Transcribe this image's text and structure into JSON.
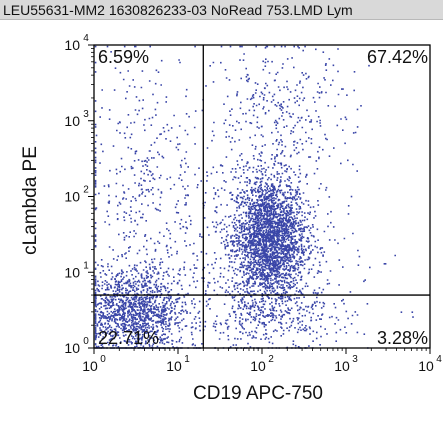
{
  "window": {
    "title": "LEU55631-MM2 1630826233-03 NoRead 753.LMD   Lym"
  },
  "colors": {
    "dots": "#3a46a8",
    "dots_dense": "#2437a9",
    "gate_lines": "#000000",
    "titlebar_bg": "#d9d9d9"
  },
  "chart_data": {
    "type": "scatter",
    "scale": "log",
    "xlabel": "CD19 APC-750",
    "ylabel": "cLambda PE",
    "xlim": [
      1,
      10000
    ],
    "ylim": [
      1,
      10000
    ],
    "x_ticks": [
      {
        "base": "10",
        "exp": "0"
      },
      {
        "base": "10",
        "exp": "1"
      },
      {
        "base": "10",
        "exp": "2"
      },
      {
        "base": "10",
        "exp": "3"
      },
      {
        "base": "10",
        "exp": "4"
      }
    ],
    "y_ticks": [
      {
        "base": "10",
        "exp": "0"
      },
      {
        "base": "10",
        "exp": "1"
      },
      {
        "base": "10",
        "exp": "2"
      },
      {
        "base": "10",
        "exp": "3"
      },
      {
        "base": "10",
        "exp": "4"
      }
    ],
    "gate": {
      "x": 20,
      "y": 5
    },
    "quadrants": [
      {
        "position": "top-left",
        "value": "6.59%"
      },
      {
        "position": "top-right",
        "value": "67.42%"
      },
      {
        "position": "bottom-left",
        "value": "22.71%"
      },
      {
        "position": "bottom-right",
        "value": "3.28%"
      }
    ],
    "populations": [
      {
        "name_hidden": "dense-cluster",
        "center": [
          120,
          28
        ],
        "spread_log": [
          0.22,
          0.42
        ],
        "count": 2600
      },
      {
        "name_hidden": "low-cluster",
        "center": [
          3,
          3
        ],
        "spread_log": [
          0.3,
          0.3
        ],
        "count": 1400
      },
      {
        "name_hidden": "upper-scatter",
        "center": [
          150,
          1000
        ],
        "spread_log": [
          0.45,
          0.55
        ],
        "count": 380
      },
      {
        "name_hidden": "left-scatter",
        "center": [
          3.5,
          300
        ],
        "spread_log": [
          0.35,
          0.75
        ],
        "count": 260
      },
      {
        "name_hidden": "bottom-right-scatter",
        "center": [
          150,
          2.5
        ],
        "spread_log": [
          0.45,
          0.25
        ],
        "count": 320
      },
      {
        "name_hidden": "background",
        "center": [
          30,
          20
        ],
        "spread_log": [
          0.8,
          0.7
        ],
        "count": 500
      }
    ]
  }
}
